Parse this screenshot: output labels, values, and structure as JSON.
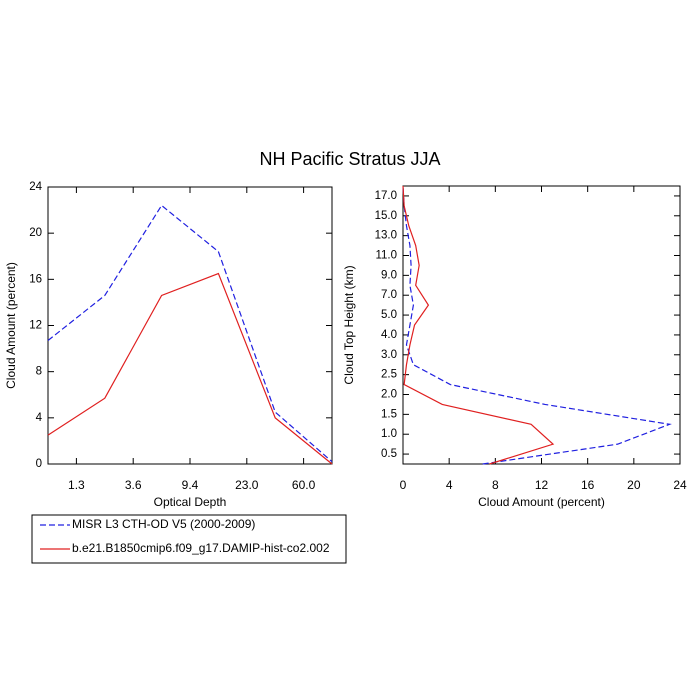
{
  "title": "NH Pacific Stratus JJA",
  "chart_data": [
    {
      "type": "line",
      "orientation": "vertical",
      "xlabel": "Optical Depth",
      "ylabel": "Cloud Amount (percent)",
      "xlim": [
        0,
        5
      ],
      "xticks": [
        {
          "value": 0.5,
          "label": "1.3"
        },
        {
          "value": 1.5,
          "label": "3.6"
        },
        {
          "value": 2.5,
          "label": "9.4"
        },
        {
          "value": 3.5,
          "label": "23.0"
        },
        {
          "value": 4.5,
          "label": "60.0"
        }
      ],
      "ylim": [
        0,
        24
      ],
      "yticks": [
        0,
        4,
        8,
        12,
        16,
        20,
        24
      ],
      "series": [
        {
          "name": "MISR L3 CTH-OD V5 (2000-2009)",
          "color": "#2020e0",
          "style": "dashed",
          "values": [
            10.7,
            14.6,
            22.4,
            18.4,
            4.5,
            0.2
          ]
        },
        {
          "name": "b.e21.B1850cmip6.f09_g17.DAMIP-hist-co2.002",
          "color": "#e02020",
          "style": "solid",
          "values": [
            2.5,
            5.7,
            14.6,
            16.5,
            4.0,
            0.0
          ]
        }
      ]
    },
    {
      "type": "line",
      "orientation": "horizontal",
      "xlabel": "Cloud Amount (percent)",
      "ylabel": "Cloud Top Height (km)",
      "xlim": [
        0,
        24
      ],
      "xticks": [
        0,
        4,
        8,
        12,
        16,
        20,
        24
      ],
      "ylim": [
        0,
        14
      ],
      "yticks": [
        {
          "value": 0.5,
          "label": "0.5"
        },
        {
          "value": 1.5,
          "label": "1.0"
        },
        {
          "value": 2.5,
          "label": "1.5"
        },
        {
          "value": 3.5,
          "label": "2.0"
        },
        {
          "value": 4.5,
          "label": "2.5"
        },
        {
          "value": 5.5,
          "label": "3.0"
        },
        {
          "value": 6.5,
          "label": "4.0"
        },
        {
          "value": 7.5,
          "label": "5.0"
        },
        {
          "value": 8.5,
          "label": "7.0"
        },
        {
          "value": 9.5,
          "label": "9.0"
        },
        {
          "value": 10.5,
          "label": "11.0"
        },
        {
          "value": 11.5,
          "label": "13.0"
        },
        {
          "value": 12.5,
          "label": "15.0"
        },
        {
          "value": 13.5,
          "label": "17.0"
        }
      ],
      "series": [
        {
          "color": "#2020e0",
          "style": "dashed",
          "values": [
            6.9,
            18.6,
            23.1,
            12.3,
            4.1,
            0.9,
            0.3,
            0.6,
            0.9,
            0.6,
            0.7,
            0.6,
            0.3,
            0.1,
            0.0
          ]
        },
        {
          "color": "#e02020",
          "style": "solid",
          "values": [
            7.5,
            13.0,
            11.1,
            3.4,
            0.1,
            0.3,
            0.6,
            1.0,
            2.2,
            1.1,
            1.4,
            1.1,
            0.5,
            0.1,
            0.0
          ]
        }
      ]
    }
  ]
}
